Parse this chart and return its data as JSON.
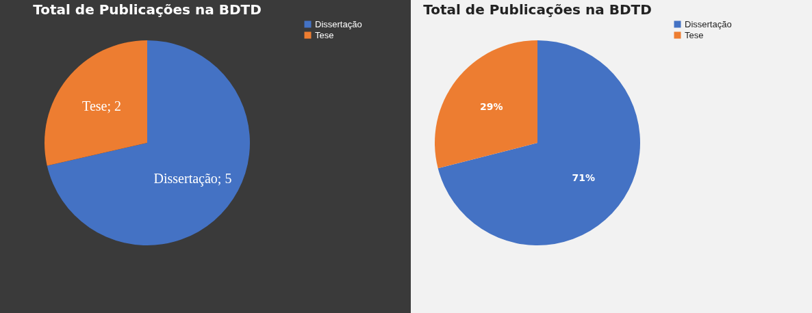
{
  "chart_data": [
    {
      "type": "pie",
      "title": "Total de Publicações na BDTD",
      "categories": [
        "Dissertação",
        "Tese"
      ],
      "values": [
        5,
        2
      ],
      "colors": [
        "#4472c4",
        "#ed7d31"
      ],
      "value_labels": [
        "Dissertação; 5",
        "Tese; 2"
      ],
      "legend": "right"
    },
    {
      "type": "pie",
      "title": "Total de Publicações na BDTD",
      "categories": [
        "Dissertação",
        "Tese"
      ],
      "values": [
        71,
        29
      ],
      "colors": [
        "#4472c4",
        "#ed7d31"
      ],
      "value_labels": [
        "71%",
        "29%"
      ],
      "legend": "right"
    }
  ]
}
